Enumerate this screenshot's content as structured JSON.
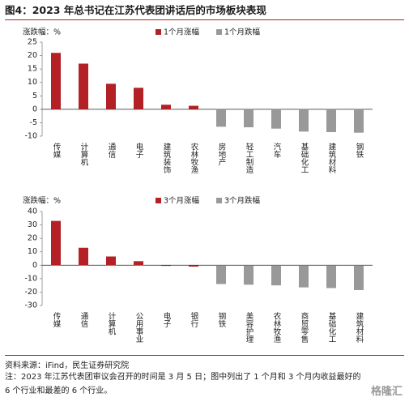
{
  "title": "图4：2023 年总书记在江苏代表团讲话后的市场板块表现",
  "chart_data": [
    {
      "type": "bar",
      "y_label": "涨跌幅：%",
      "categories": [
        "传媒",
        "计算机",
        "通信",
        "电子",
        "建筑装饰",
        "农林牧渔",
        "房地产",
        "轻工制造",
        "汽车",
        "基础化工",
        "建筑材料",
        "钢铁"
      ],
      "series": [
        {
          "name": "1个月涨幅",
          "color": "#b32025",
          "values": [
            21,
            17,
            9.5,
            8,
            1.7,
            1.3,
            null,
            null,
            null,
            null,
            null,
            null
          ]
        },
        {
          "name": "1个月跌幅",
          "color": "#999999",
          "values": [
            null,
            null,
            null,
            null,
            null,
            null,
            -6.5,
            -6.7,
            -7.2,
            -8.3,
            -8.5,
            -8.7
          ]
        }
      ],
      "ylim": [
        -10,
        25
      ],
      "yticks": [
        -10,
        -5,
        0,
        5,
        10,
        15,
        20,
        25
      ]
    },
    {
      "type": "bar",
      "y_label": "涨跌幅：%",
      "categories": [
        "传媒",
        "通信",
        "计算机",
        "公用事业",
        "电子",
        "银行",
        "钢铁",
        "美容护理",
        "农林牧渔",
        "商贸零售",
        "基础化工",
        "建筑材料"
      ],
      "series": [
        {
          "name": "3个月涨幅",
          "color": "#b32025",
          "values": [
            33,
            13,
            6.5,
            3,
            -0.5,
            -1,
            null,
            null,
            null,
            null,
            null,
            null
          ]
        },
        {
          "name": "3个月跌幅",
          "color": "#999999",
          "values": [
            null,
            null,
            null,
            null,
            null,
            null,
            -14,
            -14.5,
            -15,
            -16.5,
            -17,
            -18.5
          ]
        }
      ],
      "ylim": [
        -30,
        40
      ],
      "yticks": [
        -30,
        -20,
        -10,
        0,
        10,
        20,
        30,
        40
      ]
    }
  ],
  "source": "资料来源：iFind，民生证券研究院",
  "note": "注：2023 年江苏代表团审议会召开的时间是 3 月 5 日；图中列出了 1 个月和 3 个月内收益最好的 6 个行业和最差的 6 个行业。",
  "watermark": "格隆汇"
}
